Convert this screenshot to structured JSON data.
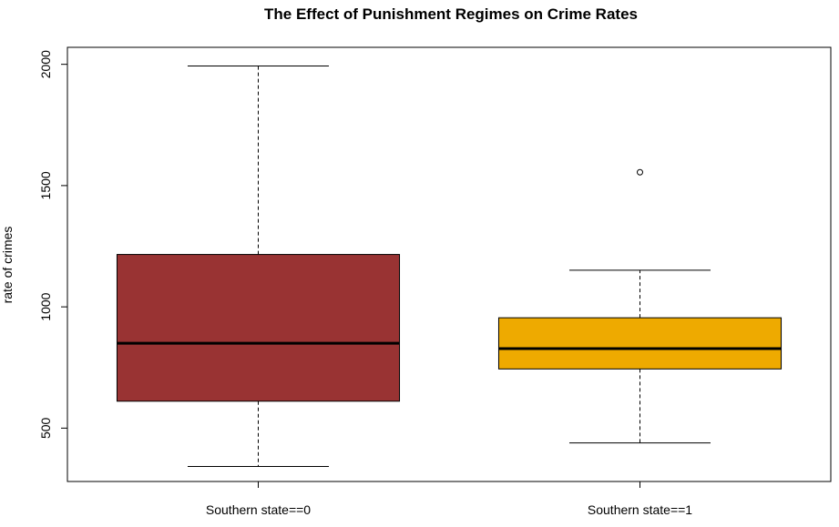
{
  "chart_data": {
    "type": "boxplot",
    "title": "The Effect of Punishment Regimes on Crime Rates",
    "xlabel": "",
    "ylabel": "rate of crimes",
    "ylim": [
      280,
      2070
    ],
    "yticks": [
      500,
      1000,
      1500,
      2000
    ],
    "grid": false,
    "legend": "none",
    "categories": [
      "Southern state==0",
      "Southern state==1"
    ],
    "boxes": [
      {
        "label": "Southern state==0",
        "whisker_low": 342,
        "q1": 611,
        "median": 850,
        "q3": 1216,
        "whisker_high": 1993,
        "outliers": [],
        "fill": "#993333"
      },
      {
        "label": "Southern state==1",
        "whisker_low": 439,
        "q1": 744,
        "median": 828,
        "q3": 955,
        "whisker_high": 1151,
        "outliers": [
          1555
        ],
        "fill": "#EEAA00"
      }
    ]
  }
}
